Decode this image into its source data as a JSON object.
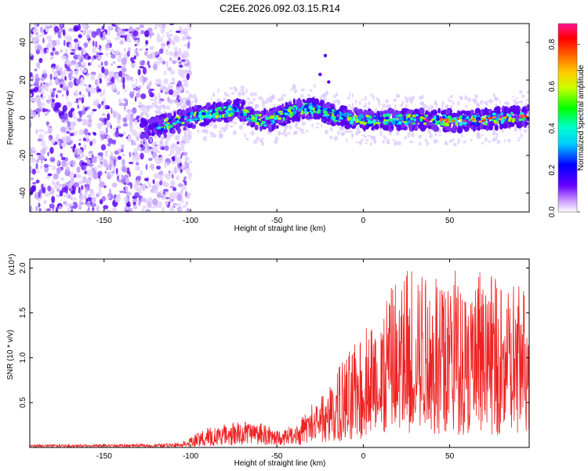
{
  "chart_data": [
    {
      "type": "heatmap",
      "title": "C2E6.2026.092.03.15.R14",
      "xlabel": "Height of straight line (km)",
      "ylabel": "Frequency (Hz)",
      "xlim": [
        -193,
        96
      ],
      "ylim": [
        -50,
        50
      ],
      "x_ticks": [
        -150,
        -100,
        -50,
        0,
        50
      ],
      "y_ticks": [
        -40,
        -20,
        0,
        20,
        40
      ],
      "colorbar": {
        "label": "Normalized spectral amplitude",
        "range": [
          0.0,
          0.9
        ],
        "ticks": [
          "0.0",
          "0.2",
          "0.4",
          "0.6",
          "0.8"
        ],
        "tick_values": [
          0.0,
          0.2,
          0.4,
          0.6,
          0.8
        ],
        "colors": [
          "#ffffff",
          "#9966ff",
          "#6600ff",
          "#0000ff",
          "#00ffff",
          "#00ff00",
          "#ffff00",
          "#ff8800",
          "#ff0000",
          "#ff1493"
        ]
      },
      "band_center_hz": [
        [
          -125,
          -5
        ],
        [
          -110,
          -3
        ],
        [
          -100,
          0
        ],
        [
          -90,
          2
        ],
        [
          -80,
          3
        ],
        [
          -72,
          5
        ],
        [
          -65,
          0
        ],
        [
          -55,
          -2
        ],
        [
          -50,
          0
        ],
        [
          -40,
          4
        ],
        [
          -30,
          5
        ],
        [
          -20,
          2
        ],
        [
          -10,
          0
        ],
        [
          0,
          -1
        ],
        [
          20,
          -1
        ],
        [
          40,
          -1
        ],
        [
          60,
          -2
        ],
        [
          80,
          0
        ],
        [
          96,
          1
        ]
      ],
      "noise_region_x": [
        -193,
        -110
      ],
      "outlier_points": [
        [
          -22,
          33
        ],
        [
          -25,
          23
        ],
        [
          -20,
          19
        ]
      ]
    },
    {
      "type": "line",
      "title": "",
      "xlabel": "Height of straight line (km)",
      "ylabel": "SNR (10 * v/v)",
      "multiplier": "(x10⁴)",
      "xlim": [
        -193,
        96
      ],
      "ylim": [
        0,
        2.1
      ],
      "x_ticks": [
        -150,
        -100,
        -50,
        0,
        50
      ],
      "y_ticks": [
        "0.5",
        "1.0",
        "1.5",
        "2.0"
      ],
      "y_tick_values": [
        0.5,
        1.0,
        1.5,
        2.0
      ],
      "color": "#ee2222",
      "envelope": {
        "x": [
          -193,
          -120,
          -105,
          -100,
          -90,
          -80,
          -70,
          -60,
          -50,
          -40,
          -30,
          -20,
          -10,
          0,
          10,
          20,
          30,
          40,
          50,
          60,
          70,
          80,
          96
        ],
        "mean": [
          0.02,
          0.02,
          0.03,
          0.06,
          0.1,
          0.14,
          0.16,
          0.16,
          0.12,
          0.15,
          0.22,
          0.32,
          0.45,
          0.58,
          0.7,
          0.85,
          0.92,
          0.95,
          0.95,
          0.92,
          0.92,
          0.9,
          0.88
        ],
        "peak": [
          0.03,
          0.04,
          0.06,
          0.12,
          0.22,
          0.26,
          0.3,
          0.28,
          0.2,
          0.25,
          0.48,
          0.7,
          1.05,
          1.3,
          1.6,
          1.95,
          2.08,
          1.9,
          2.05,
          2.02,
          1.95,
          1.9,
          1.75
        ]
      }
    }
  ]
}
